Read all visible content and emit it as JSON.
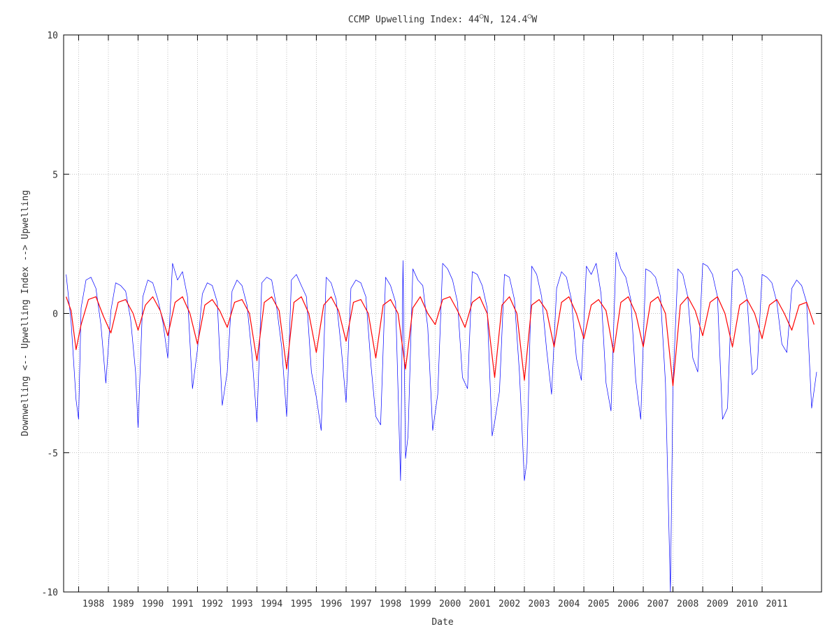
{
  "chart_data": {
    "type": "line",
    "title_main": "CCMP Upwelling Index: 44",
    "title_lat_unit": "N, 124.4",
    "title_lon_unit": "W",
    "title_degree_symbol": "○",
    "xlabel": "Date",
    "ylabel": "Downwelling <-- Upwelling Index --> Upwelling",
    "ylim": [
      -10,
      10
    ],
    "yticks": [
      -10,
      -5,
      0,
      5,
      10
    ],
    "xlim": [
      "1987-07-01",
      "2012-12-31"
    ],
    "xticks": [
      "1988",
      "1989",
      "1990",
      "1991",
      "1992",
      "1993",
      "1994",
      "1995",
      "1996",
      "1997",
      "1998",
      "1999",
      "2000",
      "2001",
      "2002",
      "2003",
      "2004",
      "2005",
      "2006",
      "2007",
      "2008",
      "2009",
      "2010",
      "2011"
    ],
    "grid": true,
    "colors": {
      "daily": "#0000ff",
      "smoothed": "#ff0000",
      "grid": "#b0b0b0",
      "frame": "#000000"
    },
    "series": [
      {
        "style": "thin-blue",
        "x": [
          "1987-08",
          "1987-10",
          "1987-12",
          "1988-01",
          "1988-02",
          "1988-04",
          "1988-06",
          "1988-08",
          "1988-10",
          "1988-12",
          "1989-02",
          "1989-04",
          "1989-06",
          "1989-08",
          "1989-10",
          "1989-12",
          "1990-01",
          "1990-03",
          "1990-05",
          "1990-07",
          "1990-09",
          "1990-11",
          "1991-01",
          "1991-03",
          "1991-05",
          "1991-07",
          "1991-09",
          "1991-11",
          "1992-01",
          "1992-03",
          "1992-05",
          "1992-07",
          "1992-09",
          "1992-11",
          "1993-01",
          "1993-03",
          "1993-05",
          "1993-07",
          "1993-09",
          "1993-11",
          "1994-01",
          "1994-03",
          "1994-05",
          "1994-07",
          "1994-09",
          "1994-11",
          "1995-01",
          "1995-03",
          "1995-05",
          "1995-07",
          "1995-09",
          "1995-11",
          "1996-01",
          "1996-03",
          "1996-05",
          "1996-07",
          "1996-09",
          "1996-11",
          "1997-01",
          "1997-03",
          "1997-05",
          "1997-07",
          "1997-09",
          "1997-11",
          "1998-01",
          "1998-03",
          "1998-05",
          "1998-07",
          "1998-09",
          "1998-11",
          "1998-12",
          "1999-01",
          "1999-02",
          "1999-04",
          "1999-06",
          "1999-08",
          "1999-10",
          "1999-12",
          "2000-02",
          "2000-04",
          "2000-06",
          "2000-08",
          "2000-10",
          "2000-12",
          "2001-02",
          "2001-04",
          "2001-06",
          "2001-08",
          "2001-10",
          "2001-12",
          "2002-01",
          "2002-03",
          "2002-05",
          "2002-07",
          "2002-09",
          "2002-11",
          "2003-01",
          "2003-02",
          "2003-04",
          "2003-06",
          "2003-08",
          "2003-10",
          "2003-12",
          "2004-02",
          "2004-04",
          "2004-06",
          "2004-08",
          "2004-10",
          "2004-12",
          "2005-02",
          "2005-04",
          "2005-06",
          "2005-08",
          "2005-10",
          "2005-12",
          "2006-02",
          "2006-04",
          "2006-06",
          "2006-08",
          "2006-10",
          "2006-12",
          "2007-02",
          "2007-04",
          "2007-06",
          "2007-08",
          "2007-10",
          "2007-12",
          "2008-01",
          "2008-03",
          "2008-05",
          "2008-07",
          "2008-09",
          "2008-11",
          "2009-01",
          "2009-03",
          "2009-05",
          "2009-07",
          "2009-09",
          "2009-11",
          "2010-01",
          "2010-03",
          "2010-05",
          "2010-07",
          "2010-09",
          "2010-11",
          "2011-01",
          "2011-03",
          "2011-05",
          "2011-07",
          "2011-09",
          "2011-11",
          "2012-01",
          "2012-03",
          "2012-05",
          "2012-07",
          "2012-09",
          "2012-11"
        ],
        "y": [
          1.4,
          -0.3,
          -3.1,
          -3.8,
          0.2,
          1.2,
          1.3,
          0.9,
          -0.4,
          -2.5,
          0.1,
          1.1,
          1.0,
          0.8,
          -0.2,
          -2.1,
          -4.1,
          0.6,
          1.2,
          1.1,
          0.5,
          -0.3,
          -1.6,
          1.8,
          1.2,
          1.5,
          0.6,
          -2.7,
          -1.3,
          0.7,
          1.1,
          1.0,
          0.4,
          -3.3,
          -2.1,
          0.8,
          1.2,
          1.0,
          0.3,
          -1.5,
          -3.9,
          1.1,
          1.3,
          1.2,
          0.2,
          -1.2,
          -3.7,
          1.2,
          1.4,
          1.0,
          0.6,
          -2.1,
          -3.0,
          -4.2,
          1.3,
          1.1,
          0.5,
          -1.2,
          -3.2,
          0.9,
          1.2,
          1.1,
          0.6,
          -1.8,
          -3.7,
          -4.0,
          1.3,
          1.0,
          0.4,
          -6.0,
          1.9,
          -5.2,
          -4.4,
          1.6,
          1.2,
          1.0,
          -0.5,
          -4.2,
          -2.9,
          1.8,
          1.6,
          1.2,
          0.4,
          -2.3,
          -2.7,
          1.5,
          1.4,
          1.0,
          0.2,
          -4.4,
          -3.9,
          -2.8,
          1.4,
          1.3,
          0.5,
          -2.1,
          -6.0,
          -5.3,
          1.7,
          1.4,
          0.6,
          -1.3,
          -2.9,
          0.9,
          1.5,
          1.3,
          0.5,
          -1.6,
          -2.4,
          1.7,
          1.4,
          1.8,
          0.7,
          -2.5,
          -3.5,
          2.2,
          1.6,
          1.3,
          0.5,
          -2.4,
          -3.8,
          1.6,
          1.5,
          1.3,
          0.6,
          -2.5,
          -10.0,
          -2.6,
          1.6,
          1.4,
          0.6,
          -1.6,
          -2.1,
          1.8,
          1.7,
          1.4,
          0.6,
          -3.8,
          -3.4,
          1.5,
          1.6,
          1.3,
          0.5,
          -2.2,
          -2.0,
          1.4,
          1.3,
          1.1,
          0.4,
          -1.1,
          -1.4,
          0.9,
          1.2,
          1.0,
          0.4,
          -3.4,
          -2.1
        ]
      },
      {
        "style": "red-smoothed",
        "x": [
          "1987-08",
          "1987-10",
          "1987-12",
          "1988-02",
          "1988-05",
          "1988-08",
          "1988-11",
          "1989-02",
          "1989-05",
          "1989-08",
          "1989-11",
          "1990-01",
          "1990-04",
          "1990-07",
          "1990-10",
          "1991-01",
          "1991-04",
          "1991-07",
          "1991-10",
          "1992-01",
          "1992-04",
          "1992-07",
          "1992-10",
          "1993-01",
          "1993-04",
          "1993-07",
          "1993-10",
          "1994-01",
          "1994-04",
          "1994-07",
          "1994-10",
          "1995-01",
          "1995-04",
          "1995-07",
          "1995-10",
          "1996-01",
          "1996-04",
          "1996-07",
          "1996-10",
          "1997-01",
          "1997-04",
          "1997-07",
          "1997-10",
          "1998-01",
          "1998-04",
          "1998-07",
          "1998-10",
          "1999-01",
          "1999-04",
          "1999-07",
          "1999-10",
          "2000-01",
          "2000-04",
          "2000-07",
          "2000-10",
          "2001-01",
          "2001-04",
          "2001-07",
          "2001-10",
          "2002-01",
          "2002-04",
          "2002-07",
          "2002-10",
          "2003-01",
          "2003-04",
          "2003-07",
          "2003-10",
          "2004-01",
          "2004-04",
          "2004-07",
          "2004-10",
          "2005-01",
          "2005-04",
          "2005-07",
          "2005-10",
          "2006-01",
          "2006-04",
          "2006-07",
          "2006-10",
          "2007-01",
          "2007-04",
          "2007-07",
          "2007-10",
          "2008-01",
          "2008-04",
          "2008-07",
          "2008-10",
          "2009-01",
          "2009-04",
          "2009-07",
          "2009-10",
          "2010-01",
          "2010-04",
          "2010-07",
          "2010-10",
          "2011-01",
          "2011-04",
          "2011-07",
          "2011-10",
          "2012-01",
          "2012-04",
          "2012-07",
          "2012-10"
        ],
        "y": [
          0.6,
          0.1,
          -1.3,
          -0.4,
          0.5,
          0.6,
          -0.1,
          -0.7,
          0.4,
          0.5,
          0.0,
          -0.6,
          0.3,
          0.6,
          0.1,
          -0.8,
          0.4,
          0.6,
          0.0,
          -1.1,
          0.3,
          0.5,
          0.1,
          -0.5,
          0.4,
          0.5,
          0.0,
          -1.7,
          0.4,
          0.6,
          0.1,
          -2.0,
          0.4,
          0.6,
          0.0,
          -1.4,
          0.3,
          0.6,
          0.1,
          -1.0,
          0.4,
          0.5,
          0.0,
          -1.6,
          0.3,
          0.5,
          0.0,
          -2.0,
          0.2,
          0.6,
          0.0,
          -0.4,
          0.5,
          0.6,
          0.1,
          -0.5,
          0.4,
          0.6,
          0.0,
          -2.3,
          0.3,
          0.6,
          0.0,
          -2.4,
          0.3,
          0.5,
          0.1,
          -1.2,
          0.4,
          0.6,
          0.0,
          -0.9,
          0.3,
          0.5,
          0.1,
          -1.4,
          0.4,
          0.6,
          0.0,
          -1.2,
          0.4,
          0.6,
          0.0,
          -2.6,
          0.3,
          0.6,
          0.1,
          -0.8,
          0.4,
          0.6,
          0.0,
          -1.2,
          0.3,
          0.5,
          0.0,
          -0.9,
          0.3,
          0.5,
          0.0,
          -0.6,
          0.3,
          0.4,
          -0.4
        ]
      }
    ]
  }
}
